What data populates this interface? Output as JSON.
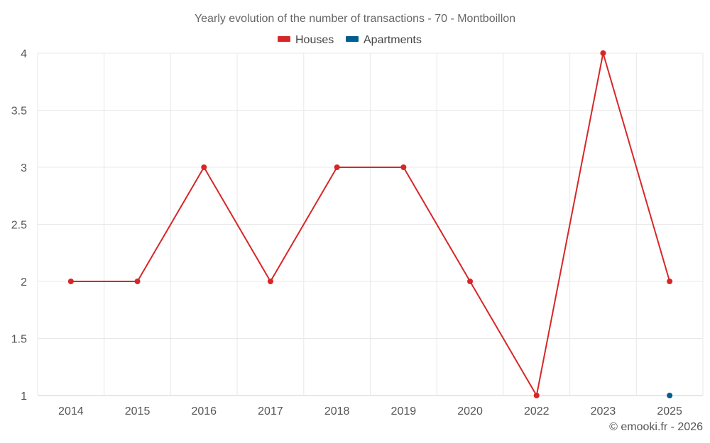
{
  "chart_data": {
    "type": "line",
    "title": "Yearly evolution of the number of transactions - 70 - Montboillon",
    "categories": [
      "2014",
      "2015",
      "2016",
      "2017",
      "2018",
      "2019",
      "2020",
      "2022",
      "2023",
      "2025"
    ],
    "series": [
      {
        "name": "Houses",
        "color": "#d62728",
        "values": [
          2,
          2,
          3,
          2,
          3,
          3,
          2,
          1,
          4,
          2
        ]
      },
      {
        "name": "Apartments",
        "color": "#005f8f",
        "values": [
          null,
          null,
          null,
          null,
          null,
          null,
          null,
          null,
          null,
          1
        ]
      }
    ],
    "ylim": [
      1,
      4
    ],
    "yticks": [
      "1",
      "1.5",
      "2",
      "2.5",
      "3",
      "3.5",
      "4"
    ],
    "xlabel": "",
    "ylabel": "",
    "legend": "top-center",
    "grid": true
  },
  "credit": "© emooki.fr - 2026"
}
